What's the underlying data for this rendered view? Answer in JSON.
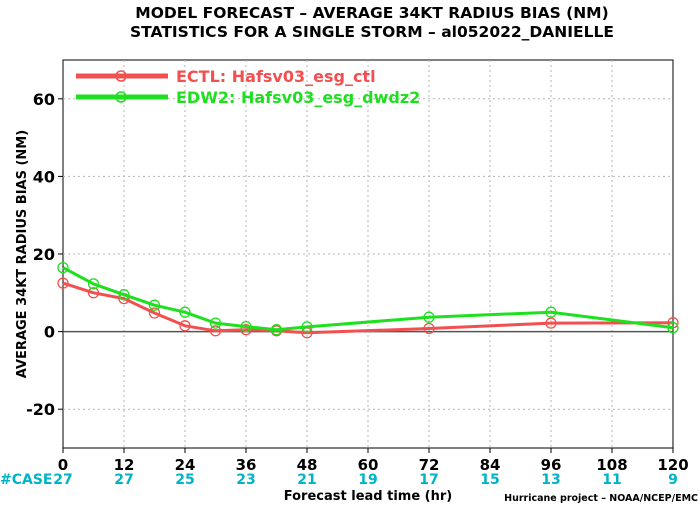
{
  "colors": {
    "ectl": "#f25050",
    "edw2": "#1ee01e",
    "case": "#00b3c6"
  },
  "chart_data": {
    "type": "line",
    "title": "MODEL FORECAST – AVERAGE 34KT RADIUS BIAS (NM)",
    "subtitle": "STATISTICS FOR A SINGLE STORM – al052022_DANIELLE",
    "xlabel": "Forecast lead time (hr)",
    "ylabel": "AVERAGE 34KT RADIUS BIAS (NM)",
    "xlim": [
      0,
      120
    ],
    "ylim": [
      -30,
      70
    ],
    "xticks": [
      0,
      12,
      24,
      36,
      48,
      60,
      72,
      84,
      96,
      108,
      120
    ],
    "yticks": [
      -20,
      0,
      20,
      40,
      60
    ],
    "grid": true,
    "legend_position": "top-left",
    "series": [
      {
        "name": "ECTL: Hafsv03_esg_ctl",
        "color": "#f25050",
        "x": [
          0,
          6,
          12,
          18,
          24,
          30,
          36,
          42,
          48,
          72,
          96,
          120
        ],
        "y": [
          12.5,
          10,
          8.5,
          4.8,
          1.5,
          0.2,
          0.5,
          0.2,
          -0.3,
          0.8,
          2.2,
          2.3
        ]
      },
      {
        "name": "EDW2: Hafsv03_esg_dwdz2",
        "color": "#1ee01e",
        "x": [
          0,
          6,
          12,
          18,
          24,
          30,
          36,
          42,
          48,
          72,
          96,
          120
        ],
        "y": [
          16.5,
          12.3,
          9.5,
          6.8,
          5.0,
          2.2,
          1.3,
          0.5,
          1.2,
          3.7,
          5.0,
          1.0
        ]
      }
    ],
    "case_label": "#CASE",
    "case_counts": [
      {
        "hour": 0,
        "count": "27"
      },
      {
        "hour": 12,
        "count": "27"
      },
      {
        "hour": 24,
        "count": "25"
      },
      {
        "hour": 36,
        "count": "23"
      },
      {
        "hour": 48,
        "count": "21"
      },
      {
        "hour": 60,
        "count": "19"
      },
      {
        "hour": 72,
        "count": "17"
      },
      {
        "hour": 84,
        "count": "15"
      },
      {
        "hour": 96,
        "count": "13"
      },
      {
        "hour": 108,
        "count": "11"
      },
      {
        "hour": 120,
        "count": "9"
      }
    ],
    "credit": "Hurricane project – NOAA/NCEP/EMC"
  }
}
